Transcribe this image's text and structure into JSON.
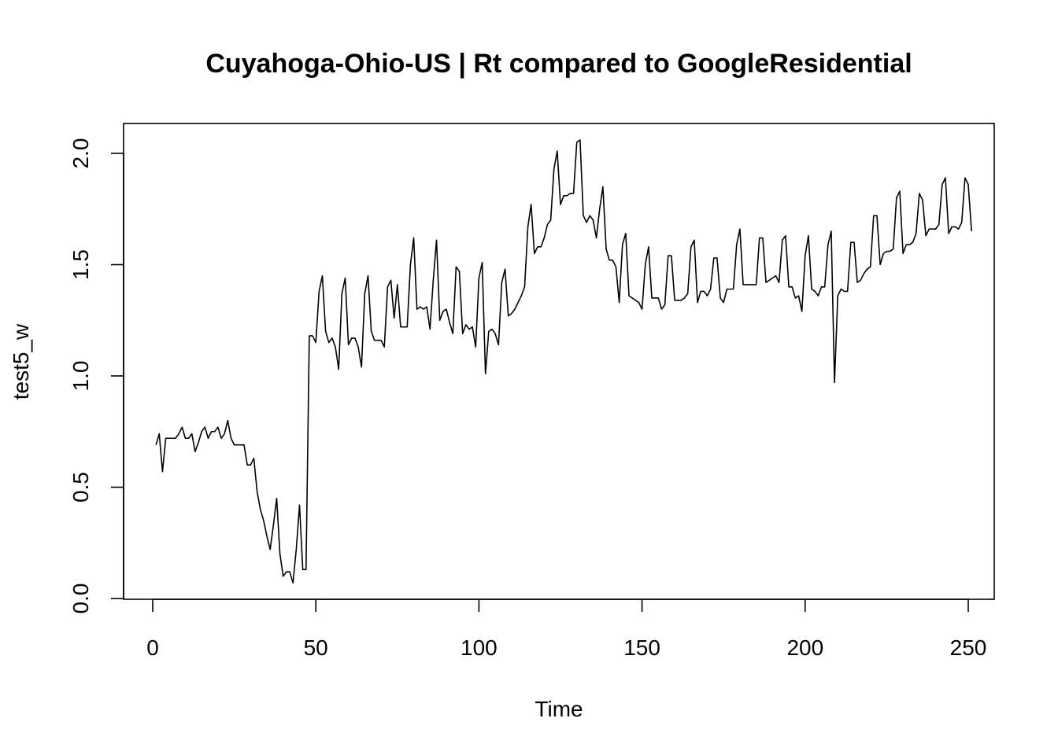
{
  "chart_data": {
    "type": "line",
    "title": "Cuyahoga-Ohio-US | Rt compared to GoogleResidential",
    "xlabel": "Time",
    "ylabel": "test5_w",
    "xlim": [
      0,
      250
    ],
    "ylim": [
      0,
      2.0
    ],
    "grid": false,
    "x_ticks": [
      "0",
      "50",
      "100",
      "150",
      "200",
      "250"
    ],
    "y_ticks": [
      "0.0",
      "0.5",
      "1.0",
      "1.5",
      "2.0"
    ],
    "series": [
      {
        "x_start": 1,
        "values": [
          0.69,
          0.74,
          0.57,
          0.72,
          0.72,
          0.72,
          0.72,
          0.74,
          0.77,
          0.72,
          0.72,
          0.74,
          0.66,
          0.7,
          0.75,
          0.77,
          0.72,
          0.75,
          0.75,
          0.77,
          0.72,
          0.74,
          0.8,
          0.72,
          0.69,
          0.69,
          0.69,
          0.69,
          0.6,
          0.6,
          0.63,
          0.48,
          0.4,
          0.35,
          0.28,
          0.22,
          0.33,
          0.45,
          0.2,
          0.1,
          0.12,
          0.12,
          0.07,
          0.22,
          0.42,
          0.13,
          0.13,
          1.18,
          1.18,
          1.15,
          1.38,
          1.45,
          1.2,
          1.15,
          1.17,
          1.13,
          1.03,
          1.37,
          1.44,
          1.14,
          1.17,
          1.17,
          1.13,
          1.04,
          1.37,
          1.45,
          1.2,
          1.16,
          1.16,
          1.16,
          1.13,
          1.4,
          1.43,
          1.26,
          1.41,
          1.22,
          1.22,
          1.22,
          1.5,
          1.62,
          1.3,
          1.31,
          1.3,
          1.31,
          1.21,
          1.43,
          1.61,
          1.25,
          1.29,
          1.3,
          1.24,
          1.19,
          1.49,
          1.47,
          1.19,
          1.23,
          1.21,
          1.22,
          1.13,
          1.44,
          1.51,
          1.01,
          1.2,
          1.21,
          1.19,
          1.14,
          1.42,
          1.48,
          1.27,
          1.28,
          1.3,
          1.33,
          1.36,
          1.4,
          1.67,
          1.77,
          1.55,
          1.58,
          1.58,
          1.62,
          1.68,
          1.7,
          1.93,
          2.01,
          1.77,
          1.81,
          1.81,
          1.82,
          1.82,
          2.05,
          2.06,
          1.72,
          1.69,
          1.72,
          1.7,
          1.62,
          1.75,
          1.85,
          1.57,
          1.52,
          1.52,
          1.49,
          1.33,
          1.59,
          1.64,
          1.36,
          1.35,
          1.34,
          1.33,
          1.3,
          1.5,
          1.58,
          1.35,
          1.35,
          1.35,
          1.3,
          1.32,
          1.54,
          1.54,
          1.34,
          1.34,
          1.34,
          1.35,
          1.37,
          1.58,
          1.61,
          1.33,
          1.38,
          1.38,
          1.36,
          1.39,
          1.53,
          1.53,
          1.35,
          1.33,
          1.39,
          1.39,
          1.39,
          1.59,
          1.66,
          1.41,
          1.41,
          1.41,
          1.41,
          1.41,
          1.62,
          1.62,
          1.42,
          1.43,
          1.44,
          1.45,
          1.42,
          1.61,
          1.63,
          1.4,
          1.4,
          1.35,
          1.36,
          1.29,
          1.54,
          1.63,
          1.39,
          1.38,
          1.36,
          1.4,
          1.4,
          1.59,
          1.65,
          0.97,
          1.36,
          1.39,
          1.38,
          1.38,
          1.6,
          1.6,
          1.42,
          1.43,
          1.46,
          1.48,
          1.49,
          1.72,
          1.72,
          1.5,
          1.55,
          1.56,
          1.56,
          1.57,
          1.8,
          1.83,
          1.55,
          1.59,
          1.59,
          1.6,
          1.64,
          1.82,
          1.79,
          1.63,
          1.66,
          1.66,
          1.66,
          1.68,
          1.86,
          1.89,
          1.64,
          1.67,
          1.67,
          1.66,
          1.69,
          1.89,
          1.86,
          1.65
        ]
      }
    ]
  }
}
